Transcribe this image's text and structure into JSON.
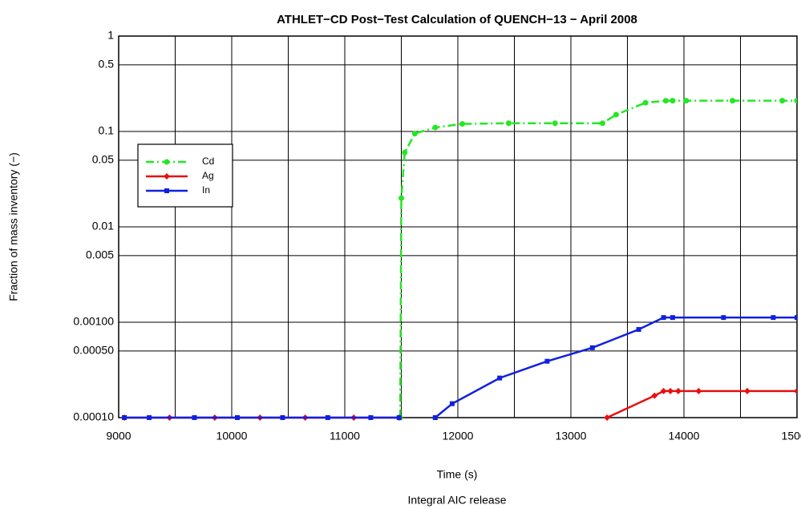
{
  "chart_data": {
    "type": "line",
    "title": "ATHLET−CD Post−Test Calculation of QUENCH−13 − April 2008",
    "xlabel": "Time (s)",
    "ylabel": "Fraction of mass inventory (−)",
    "subtitle": "Integral AIC release",
    "xlim": [
      9000,
      15000
    ],
    "xticks": [
      9000,
      10000,
      11000,
      12000,
      13000,
      14000,
      15000
    ],
    "ylim": [
      0.0001,
      1
    ],
    "yscale": "log",
    "yticks": [
      1,
      0.5,
      0.1,
      0.05,
      0.01,
      0.005,
      {
        "value": 0.001,
        "label": "0.00100"
      },
      {
        "value": 0.0005,
        "label": "0.00050"
      },
      {
        "value": 0.0001,
        "label": "0.00010"
      }
    ],
    "grid": true,
    "legend": "upper left",
    "series": [
      {
        "name": "Cd",
        "color": "#22e822",
        "dash": "dashdot",
        "x": [
          11490,
          11500,
          11530,
          11620,
          11800,
          12040,
          12450,
          12860,
          13280,
          13400,
          13660,
          13840,
          13900,
          14020,
          14430,
          14870,
          15000
        ],
        "values": [
          0.0001,
          0.02,
          0.06,
          0.095,
          0.11,
          0.12,
          0.122,
          0.122,
          0.122,
          0.15,
          0.2,
          0.21,
          0.21,
          0.21,
          0.21,
          0.21,
          0.21
        ]
      },
      {
        "name": "Ag",
        "color": "#e81010",
        "dash": "solid",
        "x": [
          9050,
          9450,
          9850,
          10250,
          10650,
          11080,
          11480,
          null,
          13320,
          13740,
          13820,
          13880,
          13950,
          14130,
          14560,
          15000
        ],
        "values": [
          0.0001,
          0.0001,
          0.0001,
          0.0001,
          0.0001,
          0.0001,
          0.0001,
          null,
          0.0001,
          0.00017,
          0.00019,
          0.00019,
          0.00019,
          0.00019,
          0.00019,
          0.00019
        ]
      },
      {
        "name": "In",
        "color": "#1020e0",
        "dash": "solid",
        "x": [
          9050,
          9270,
          9670,
          10050,
          10450,
          10850,
          11230,
          11480,
          null,
          11800,
          11950,
          12370,
          12790,
          13190,
          13600,
          13820,
          13900,
          14350,
          14790,
          15000
        ],
        "values": [
          0.0001,
          0.0001,
          0.0001,
          0.0001,
          0.0001,
          0.0001,
          0.0001,
          0.0001,
          null,
          0.0001,
          0.00014,
          0.00026,
          0.00039,
          0.00054,
          0.00084,
          0.00112,
          0.00112,
          0.00112,
          0.00112,
          0.00112
        ]
      }
    ]
  }
}
